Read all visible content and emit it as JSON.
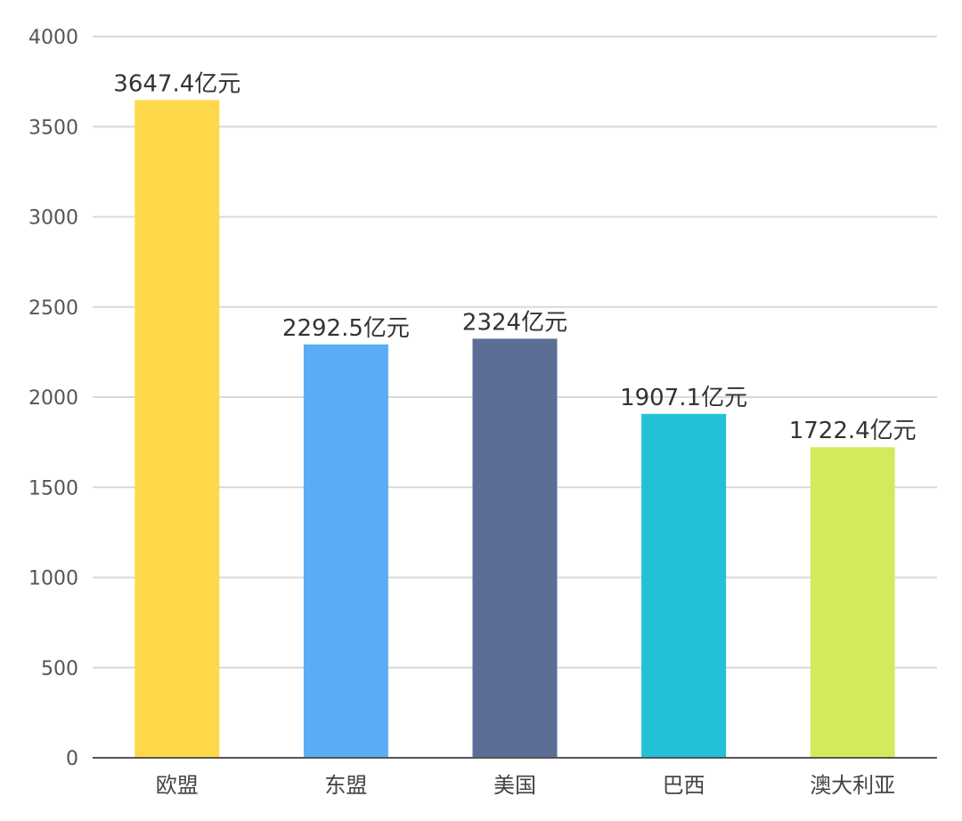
{
  "chart_data": {
    "type": "bar",
    "categories": [
      "欧盟",
      "东盟",
      "美国",
      "巴西",
      "澳大利亚"
    ],
    "values": [
      3647.4,
      2292.5,
      2324,
      1907.1,
      1722.4
    ],
    "data_labels": [
      "3647.4亿元",
      "2292.5亿元",
      "2324亿元",
      "1907.1亿元",
      "1722.4亿元"
    ],
    "bar_colors": [
      "#FFD84A",
      "#5AADF5",
      "#5C6E96",
      "#22C1D8",
      "#D4EA5C"
    ],
    "y_ticks": [
      0,
      500,
      1000,
      1500,
      2000,
      2500,
      3000,
      3500,
      4000
    ],
    "ylim": [
      0,
      4000
    ],
    "title": "",
    "xlabel": "",
    "ylabel": "",
    "grid": true,
    "legend": "none"
  }
}
